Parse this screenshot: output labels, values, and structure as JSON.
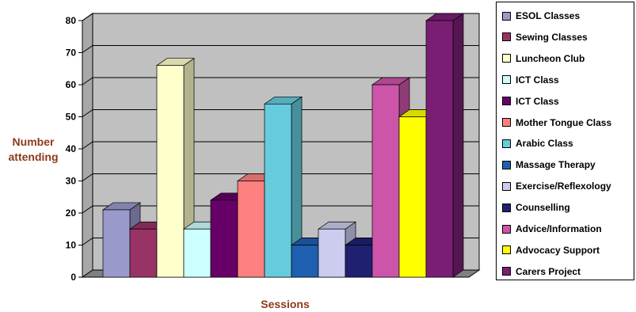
{
  "chart_data": {
    "type": "bar",
    "title": "",
    "xlabel": "Sessions",
    "ylabel": "Number attending",
    "ylim": [
      0,
      80
    ],
    "yticks": [
      0,
      10,
      20,
      30,
      40,
      50,
      60,
      70,
      80
    ],
    "grid": true,
    "legend_position": "right",
    "bars": [
      {
        "name": "ESOL Classes",
        "value": 21,
        "color": "#9999cc"
      },
      {
        "name": "Sewing Classes",
        "value": 15,
        "color": "#993366"
      },
      {
        "name": "Luncheon Club",
        "value": 66,
        "color": "#ffffcc"
      },
      {
        "name": "ICT Class",
        "value": 15,
        "color": "#ccffff"
      },
      {
        "name": "ICT Class",
        "value": 24,
        "color": "#660066"
      },
      {
        "name": "Mother Tongue Class",
        "value": 30,
        "color": "#ff8080"
      },
      {
        "name": "Arabic Class",
        "value": 54,
        "color": "#66ccdd"
      },
      {
        "name": "Massage Therapy",
        "value": 10,
        "color": "#1f5fb0"
      },
      {
        "name": "Exercise/Reflexology",
        "value": 15,
        "color": "#ccccee"
      },
      {
        "name": "Counselling",
        "value": 10,
        "color": "#202070"
      },
      {
        "name": "Advice/Information",
        "value": 60,
        "color": "#cc55aa"
      },
      {
        "name": "Advocacy Support",
        "value": 50,
        "color": "#ffff00"
      },
      {
        "name": "Carers Project",
        "value": 80,
        "color": "#7a1e74"
      }
    ]
  }
}
